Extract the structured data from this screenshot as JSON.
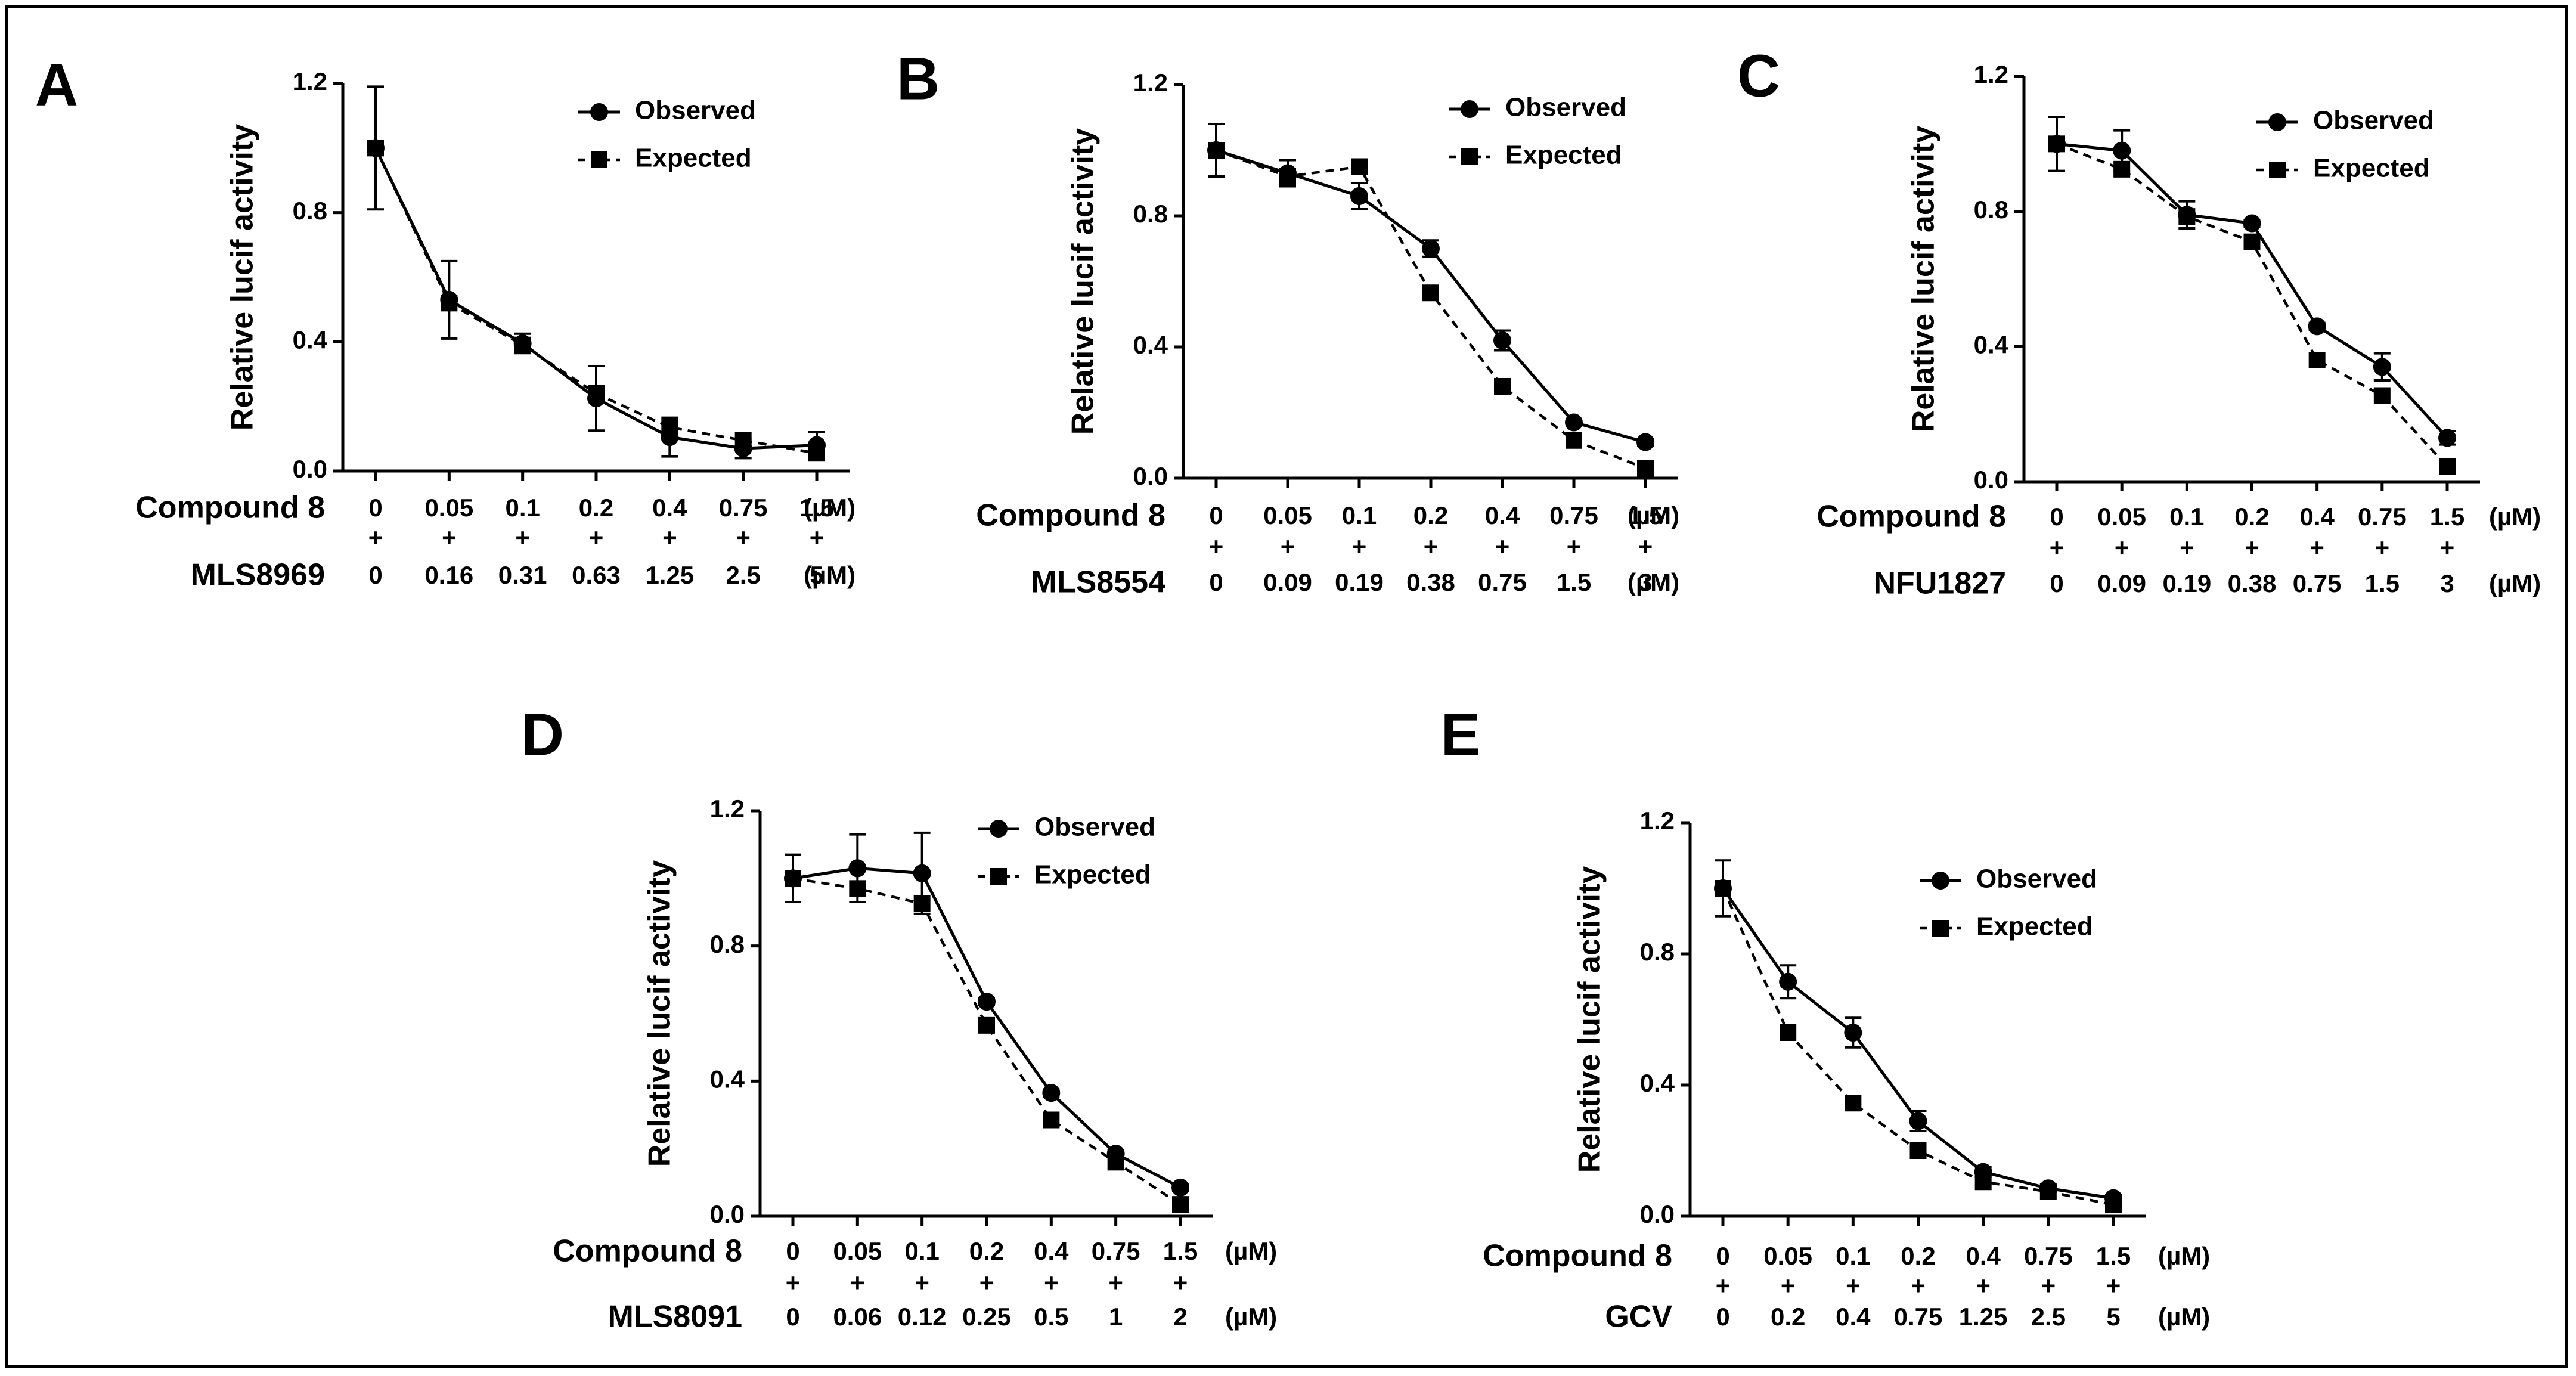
{
  "chart_data": [
    {
      "panel": "A",
      "type": "line",
      "ylabel": "Relative lucif activity",
      "ylim": [
        0,
        1.2
      ],
      "yticks": [
        "0.0",
        "0.4",
        "0.8",
        "1.2"
      ],
      "compound_label": "Compound 8",
      "compound_doses": [
        "0",
        "0.05",
        "0.1",
        "0.2",
        "0.4",
        "0.75",
        "1.5"
      ],
      "partner_label": "MLS8969",
      "partner_doses": [
        "0",
        "0.16",
        "0.31",
        "0.63",
        "1.25",
        "2.5",
        "5"
      ],
      "unit": "(µM)",
      "plus": "+",
      "legend": {
        "observed": "Observed",
        "expected": "Expected"
      },
      "series": [
        {
          "name": "Observed",
          "values": [
            1.0,
            0.53,
            0.395,
            0.225,
            0.105,
            0.07,
            0.08
          ],
          "errors": [
            0.19,
            0.12,
            0.03,
            0.1,
            0.06,
            0.03,
            0.04
          ]
        },
        {
          "name": "Expected",
          "values": [
            1.0,
            0.52,
            0.39,
            0.24,
            0.135,
            0.095,
            0.055
          ],
          "errors": []
        }
      ]
    },
    {
      "panel": "B",
      "type": "line",
      "ylabel": "Relative lucif activity",
      "ylim": [
        0,
        1.2
      ],
      "yticks": [
        "0.0",
        "0.4",
        "0.8",
        "1.2"
      ],
      "compound_label": "Compound 8",
      "compound_doses": [
        "0",
        "0.05",
        "0.1",
        "0.2",
        "0.4",
        "0.75",
        "1.5"
      ],
      "partner_label": "MLS8554",
      "partner_doses": [
        "0",
        "0.09",
        "0.19",
        "0.38",
        "0.75",
        "1.5",
        "3"
      ],
      "unit": "(µM)",
      "plus": "+",
      "legend": {
        "observed": "Observed",
        "expected": "Expected"
      },
      "series": [
        {
          "name": "Observed",
          "values": [
            1.0,
            0.93,
            0.86,
            0.7,
            0.42,
            0.17,
            0.11
          ],
          "errors": [
            0.08,
            0.04,
            0.04,
            0.025,
            0.03,
            0.01,
            0.01
          ]
        },
        {
          "name": "Expected",
          "values": [
            1.0,
            0.92,
            0.95,
            0.565,
            0.28,
            0.115,
            0.03
          ],
          "errors": []
        }
      ]
    },
    {
      "panel": "C",
      "type": "line",
      "ylabel": "Relative lucif activity",
      "ylim": [
        0,
        1.2
      ],
      "yticks": [
        "0.0",
        "0.4",
        "0.8",
        "1.2"
      ],
      "compound_label": "Compound 8",
      "compound_doses": [
        "0",
        "0.05",
        "0.1",
        "0.2",
        "0.4",
        "0.75",
        "1.5"
      ],
      "partner_label": "NFU1827",
      "partner_doses": [
        "0",
        "0.09",
        "0.19",
        "0.38",
        "0.75",
        "1.5",
        "3"
      ],
      "unit": "(µM)",
      "plus": "+",
      "legend": {
        "observed": "Observed",
        "expected": "Expected"
      },
      "series": [
        {
          "name": "Observed",
          "values": [
            1.0,
            0.98,
            0.79,
            0.765,
            0.46,
            0.34,
            0.13
          ],
          "errors": [
            0.08,
            0.06,
            0.04,
            0.01,
            0.01,
            0.04,
            0.02
          ]
        },
        {
          "name": "Expected",
          "values": [
            1.0,
            0.925,
            0.785,
            0.71,
            0.36,
            0.255,
            0.045
          ],
          "errors": []
        }
      ]
    },
    {
      "panel": "D",
      "type": "line",
      "ylabel": "Relative lucif activity",
      "ylim": [
        0,
        1.2
      ],
      "yticks": [
        "0.0",
        "0.4",
        "0.8",
        "1.2"
      ],
      "compound_label": "Compound 8",
      "compound_doses": [
        "0",
        "0.05",
        "0.1",
        "0.2",
        "0.4",
        "0.75",
        "1.5"
      ],
      "partner_label": "MLS8091",
      "partner_doses": [
        "0",
        "0.06",
        "0.12",
        "0.25",
        "0.5",
        "1",
        "2"
      ],
      "unit": "(µM)",
      "plus": "+",
      "legend": {
        "observed": "Observed",
        "expected": "Expected"
      },
      "series": [
        {
          "name": "Observed",
          "values": [
            1.0,
            1.03,
            1.015,
            0.635,
            0.365,
            0.185,
            0.085
          ],
          "errors": [
            0.07,
            0.1,
            0.12,
            0.01,
            0.01,
            0.01,
            0.01
          ]
        },
        {
          "name": "Expected",
          "values": [
            1.0,
            0.97,
            0.925,
            0.565,
            0.285,
            0.16,
            0.035
          ],
          "errors": []
        }
      ]
    },
    {
      "panel": "E",
      "type": "line",
      "ylabel": "Relative lucif activity",
      "ylim": [
        0,
        1.2
      ],
      "yticks": [
        "0.0",
        "0.4",
        "0.8",
        "1.2"
      ],
      "compound_label": "Compound 8",
      "compound_doses": [
        "0",
        "0.05",
        "0.1",
        "0.2",
        "0.4",
        "0.75",
        "1.5"
      ],
      "partner_label": "GCV",
      "partner_doses": [
        "0",
        "0.2",
        "0.4",
        "0.75",
        "1.25",
        "2.5",
        "5"
      ],
      "unit": "(µM)",
      "plus": "+",
      "legend": {
        "observed": "Observed",
        "expected": "Expected"
      },
      "series": [
        {
          "name": "Observed",
          "values": [
            1.0,
            0.715,
            0.56,
            0.29,
            0.135,
            0.085,
            0.055
          ],
          "errors": [
            0.085,
            0.05,
            0.045,
            0.03,
            0.015,
            0.01,
            0.01
          ]
        },
        {
          "name": "Expected",
          "values": [
            1.0,
            0.56,
            0.345,
            0.2,
            0.105,
            0.075,
            0.035
          ],
          "errors": []
        }
      ]
    }
  ]
}
